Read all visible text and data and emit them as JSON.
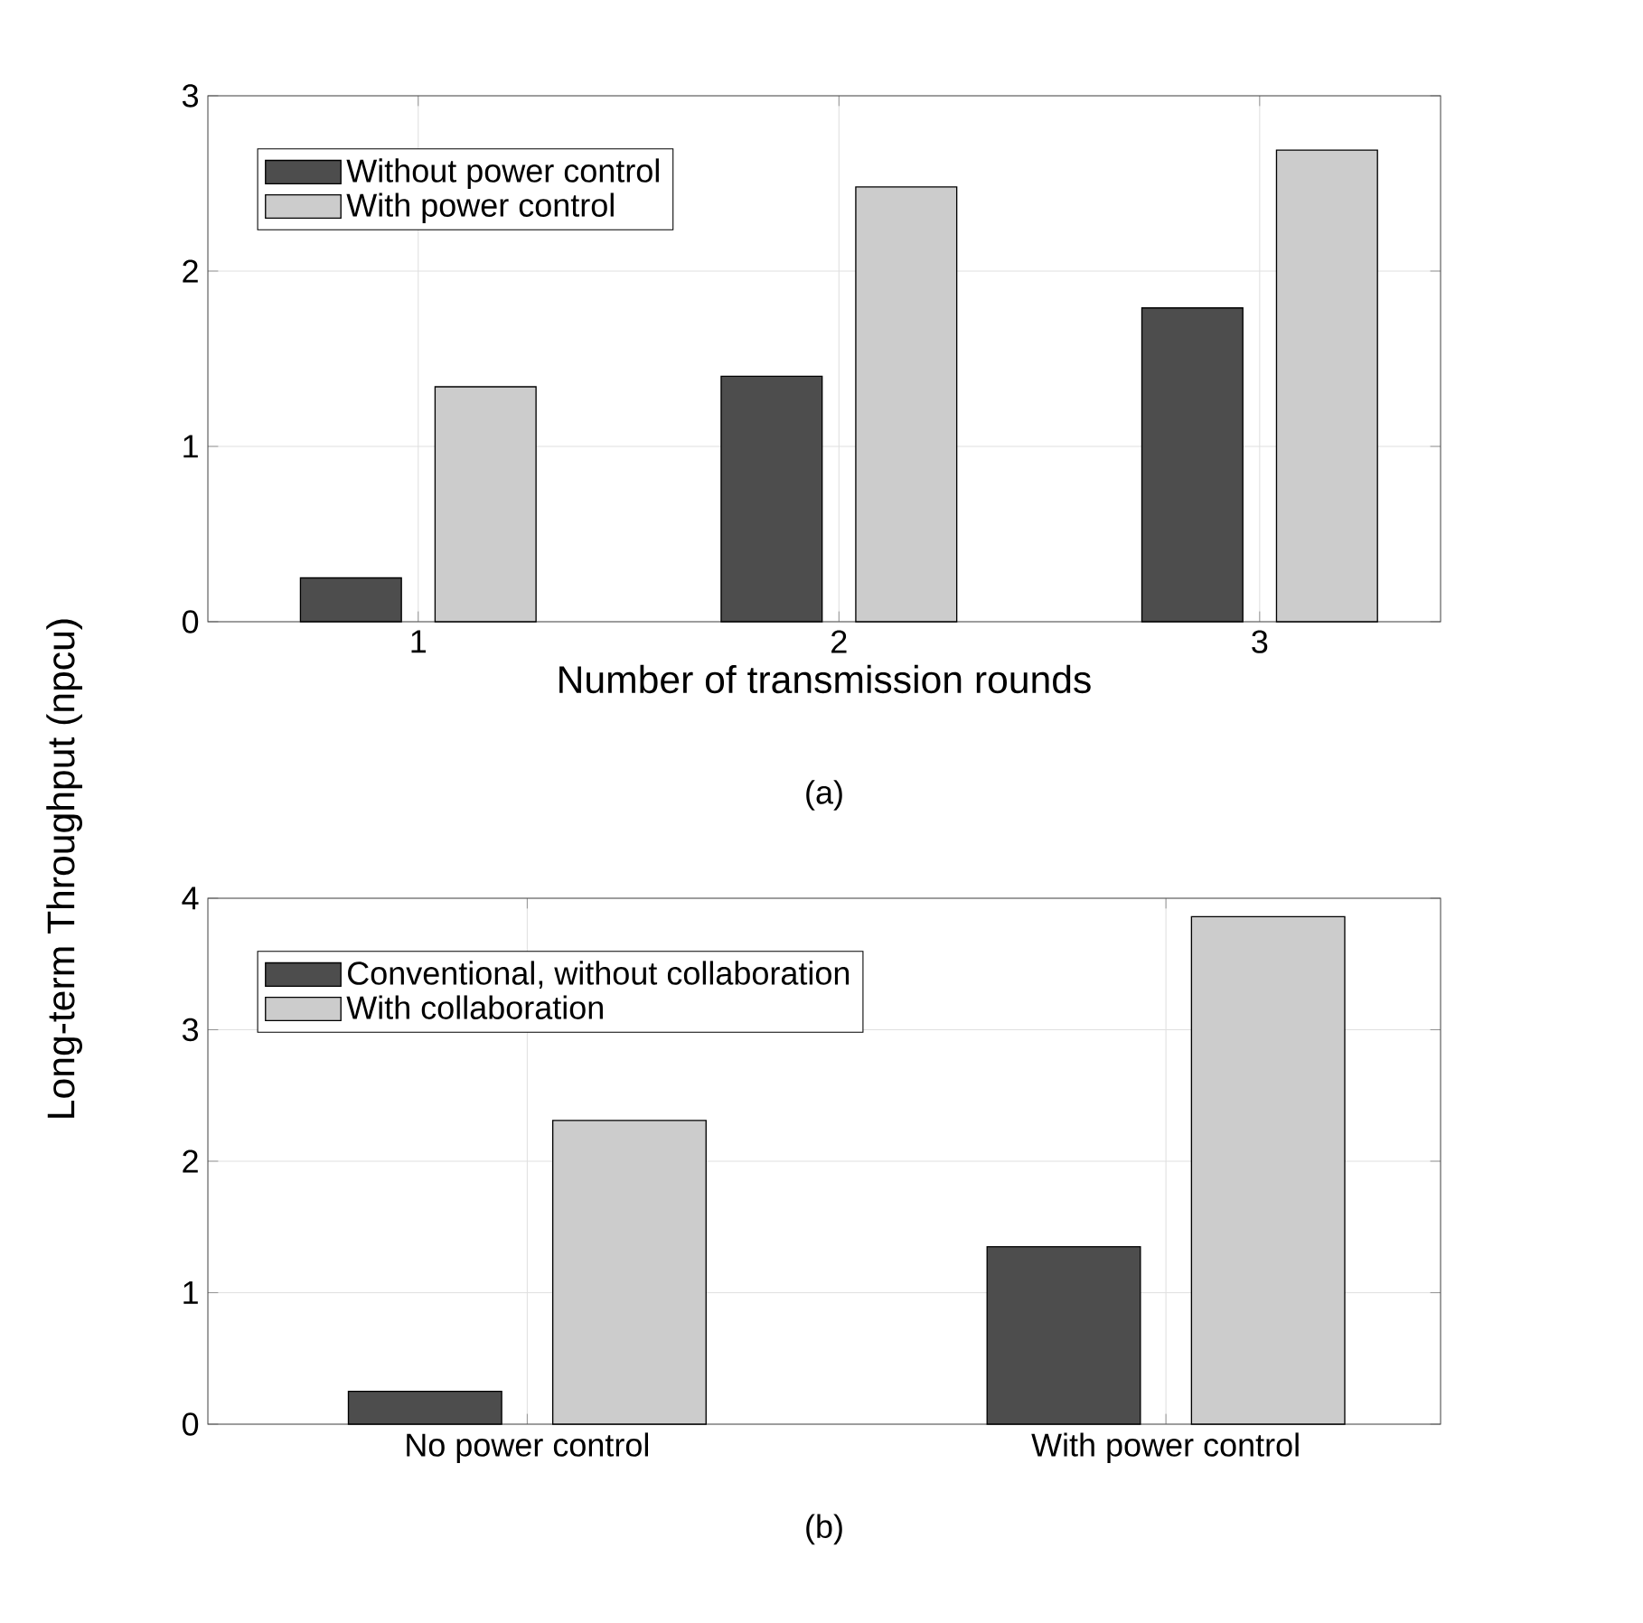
{
  "chart_data": [
    {
      "type": "bar",
      "xlabel": "Number of transmission rounds",
      "ylabel": "Long-term Throughput (npcu)",
      "categories": [
        "1",
        "2",
        "3"
      ],
      "series": [
        {
          "name": "Without power control",
          "color": "#4d4d4d",
          "values": [
            0.25,
            1.4,
            1.79
          ]
        },
        {
          "name": "With power control",
          "color": "#cccccc",
          "values": [
            1.34,
            2.48,
            2.69
          ]
        }
      ],
      "ylim": [
        0,
        3
      ],
      "yticks": [
        0,
        1,
        2,
        3
      ],
      "grid": true,
      "legend": "top left",
      "annotations": [
        "(a)"
      ]
    },
    {
      "type": "bar",
      "categories": [
        "No power control",
        "With power control"
      ],
      "series": [
        {
          "name": "Conventional, without collaboration",
          "color": "#4d4d4d",
          "values": [
            0.25,
            1.35
          ]
        },
        {
          "name": "With collaboration",
          "color": "#cccccc",
          "values": [
            2.31,
            3.86
          ]
        }
      ],
      "ylim": [
        0,
        4
      ],
      "yticks": [
        0,
        1,
        2,
        3,
        4
      ],
      "grid": true,
      "legend": "top left",
      "annotations": [
        "(b)"
      ]
    }
  ]
}
